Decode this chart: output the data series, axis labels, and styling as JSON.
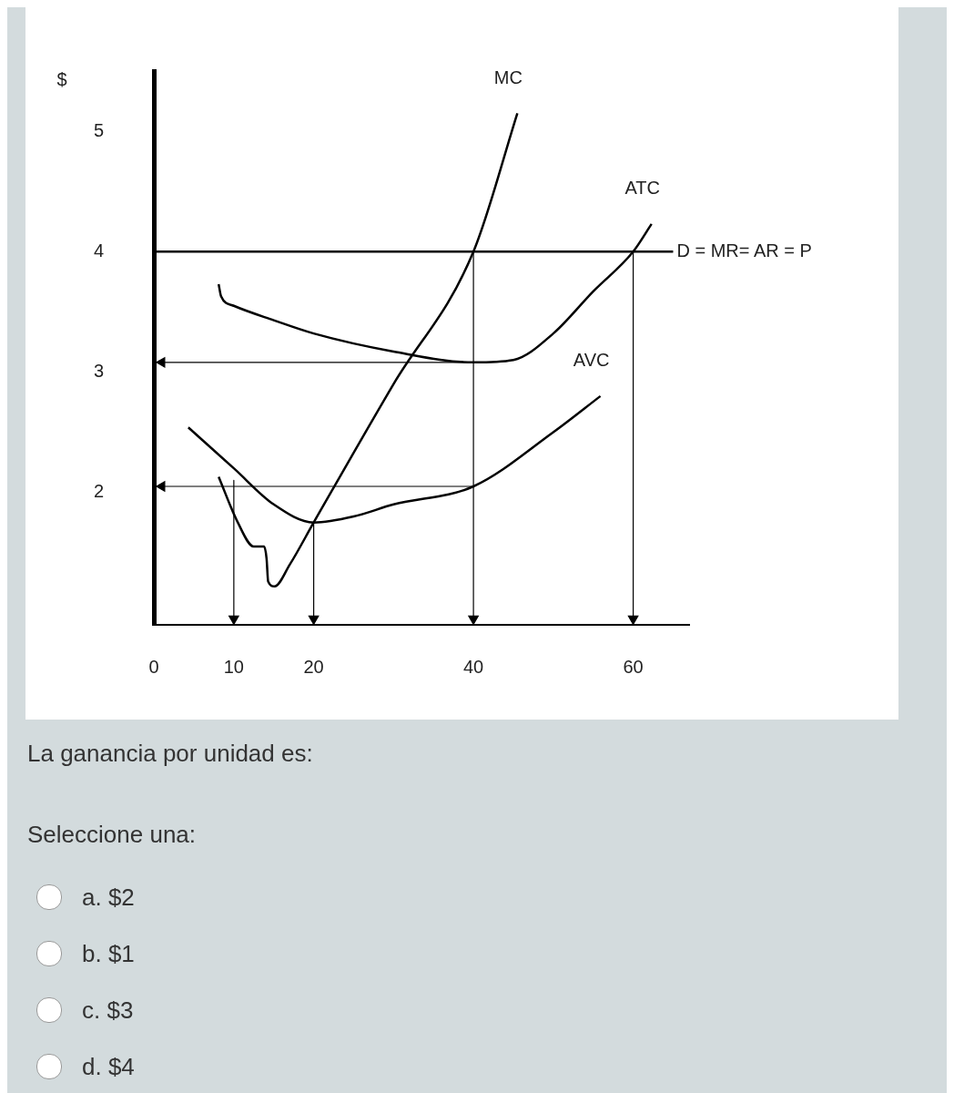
{
  "chart_data": {
    "type": "line",
    "ylabel": "$",
    "xlim": [
      0,
      67
    ],
    "ylim": [
      0.9,
      5.5
    ],
    "xticks": [
      0,
      10,
      20,
      40,
      60
    ],
    "yticks": [
      2,
      3,
      4,
      5
    ],
    "grid": false,
    "legend": false,
    "annotations": [
      "La ganancia por unidad es:",
      "Seleccione una:",
      "a. $2",
      "b. $1",
      "c. $3",
      "d. $4"
    ],
    "series": [
      {
        "name": "MC",
        "color": "#000000",
        "x": [
          8.1,
          10.5,
          12.5,
          13.8,
          14.1,
          14.3,
          15.1,
          17,
          20,
          30,
          40,
          45.5
        ],
        "values": [
          2.13,
          1.75,
          1.55,
          1.55,
          1.45,
          1.26,
          1.22,
          1.4,
          1.75,
          2.9,
          4,
          5.15
        ]
      },
      {
        "name": "ATC",
        "color": "#000000",
        "x": [
          8.1,
          8.4,
          10,
          15,
          20,
          30,
          40,
          45,
          50,
          55,
          60,
          62.3
        ],
        "values": [
          3.73,
          3.63,
          3.55,
          3.43,
          3.32,
          3.17,
          3.08,
          3.1,
          3.32,
          3.67,
          4,
          4.23
        ]
      },
      {
        "name": "AVC",
        "color": "#000000",
        "x": [
          4.3,
          10,
          15,
          20,
          25,
          30,
          40,
          50,
          55.9
        ],
        "values": [
          2.54,
          2.2,
          1.9,
          1.75,
          1.8,
          1.9,
          2.05,
          2.5,
          2.8
        ]
      },
      {
        "name": "D = MR= AR = P",
        "color": "#000000",
        "x": [
          0,
          65
        ],
        "values": [
          4,
          4
        ]
      },
      {
        "color": "#000000",
        "x": [
          10,
          10
        ],
        "values": [
          2.1,
          0.95
        ]
      },
      {
        "color": "#000000",
        "x": [
          20,
          20
        ],
        "values": [
          1.75,
          0.95
        ]
      },
      {
        "color": "#000000",
        "x": [
          40,
          40
        ],
        "values": [
          4,
          0.95
        ]
      },
      {
        "color": "#000000",
        "x": [
          60,
          60
        ],
        "values": [
          4,
          0.95
        ]
      },
      {
        "color": "#000000",
        "x": [
          40,
          1
        ],
        "values": [
          3.08,
          3.08
        ]
      },
      {
        "color": "#000000",
        "x": [
          40,
          1
        ],
        "values": [
          2.05,
          2.05
        ]
      }
    ]
  }
}
